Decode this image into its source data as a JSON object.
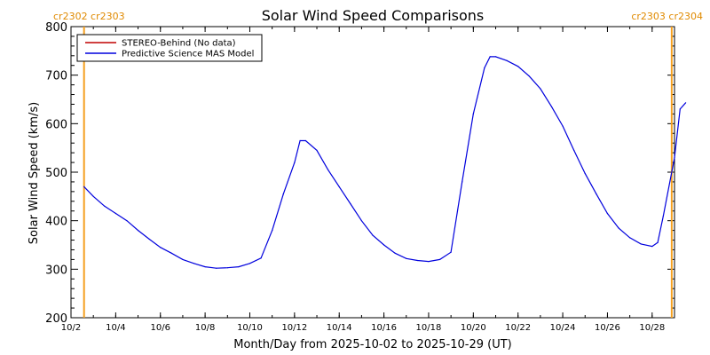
{
  "chart_data": {
    "type": "line",
    "title": "Solar Wind Speed Comparisons",
    "xlabel": "Month/Day from 2025-10-02 to 2025-10-29 (UT)",
    "ylabel": "Solar Wind Speed (km/s)",
    "xlim": [
      "2025-10-02",
      "2025-10-29"
    ],
    "ylim": [
      200,
      800
    ],
    "x_ticks": [
      {
        "date": "2025-10-02",
        "label": "10/2"
      },
      {
        "date": "2025-10-04",
        "label": "10/4"
      },
      {
        "date": "2025-10-06",
        "label": "10/6"
      },
      {
        "date": "2025-10-08",
        "label": "10/8"
      },
      {
        "date": "2025-10-10",
        "label": "10/10"
      },
      {
        "date": "2025-10-12",
        "label": "10/12"
      },
      {
        "date": "2025-10-14",
        "label": "10/14"
      },
      {
        "date": "2025-10-16",
        "label": "10/16"
      },
      {
        "date": "2025-10-18",
        "label": "10/18"
      },
      {
        "date": "2025-10-20",
        "label": "10/20"
      },
      {
        "date": "2025-10-22",
        "label": "10/22"
      },
      {
        "date": "2025-10-24",
        "label": "10/24"
      },
      {
        "date": "2025-10-26",
        "label": "10/26"
      },
      {
        "date": "2025-10-28",
        "label": "10/28"
      }
    ],
    "y_ticks": [
      200,
      300,
      400,
      500,
      600,
      700,
      800
    ],
    "legend_position": "top-left",
    "carrington_markers": [
      {
        "date": "2025-10-02 14:00",
        "label": "cr2302 cr2303",
        "color": "#f5a020"
      },
      {
        "date": "2025-10-28 21:00",
        "label": "cr2303 cr2304",
        "color": "#f5a020"
      }
    ],
    "series": [
      {
        "name": "STEREO-Behind (No data)",
        "color": "#c00000",
        "points": []
      },
      {
        "name": "Predictive Science MAS Model",
        "color": "#0000dd",
        "points": [
          [
            "2025-10-02 14:00",
            470
          ],
          [
            "2025-10-03 00:00",
            450
          ],
          [
            "2025-10-03 12:00",
            430
          ],
          [
            "2025-10-04 00:00",
            415
          ],
          [
            "2025-10-04 12:00",
            400
          ],
          [
            "2025-10-05 00:00",
            380
          ],
          [
            "2025-10-05 12:00",
            362
          ],
          [
            "2025-10-06 00:00",
            345
          ],
          [
            "2025-10-06 12:00",
            333
          ],
          [
            "2025-10-07 00:00",
            320
          ],
          [
            "2025-10-07 12:00",
            312
          ],
          [
            "2025-10-08 00:00",
            305
          ],
          [
            "2025-10-08 12:00",
            302
          ],
          [
            "2025-10-09 00:00",
            303
          ],
          [
            "2025-10-09 12:00",
            305
          ],
          [
            "2025-10-10 00:00",
            312
          ],
          [
            "2025-10-10 12:00",
            323
          ],
          [
            "2025-10-11 00:00",
            380
          ],
          [
            "2025-10-11 12:00",
            455
          ],
          [
            "2025-10-12 00:00",
            520
          ],
          [
            "2025-10-12 06:00",
            565
          ],
          [
            "2025-10-12 12:00",
            565
          ],
          [
            "2025-10-13 00:00",
            545
          ],
          [
            "2025-10-13 12:00",
            505
          ],
          [
            "2025-10-14 00:00",
            470
          ],
          [
            "2025-10-14 12:00",
            435
          ],
          [
            "2025-10-15 00:00",
            400
          ],
          [
            "2025-10-15 12:00",
            370
          ],
          [
            "2025-10-16 00:00",
            350
          ],
          [
            "2025-10-16 12:00",
            333
          ],
          [
            "2025-10-17 00:00",
            322
          ],
          [
            "2025-10-17 12:00",
            318
          ],
          [
            "2025-10-18 00:00",
            316
          ],
          [
            "2025-10-18 12:00",
            320
          ],
          [
            "2025-10-19 00:00",
            335
          ],
          [
            "2025-10-19 12:00",
            480
          ],
          [
            "2025-10-20 00:00",
            620
          ],
          [
            "2025-10-20 12:00",
            715
          ],
          [
            "2025-10-20 18:00",
            738
          ],
          [
            "2025-10-21 00:00",
            738
          ],
          [
            "2025-10-21 12:00",
            730
          ],
          [
            "2025-10-22 00:00",
            718
          ],
          [
            "2025-10-22 12:00",
            698
          ],
          [
            "2025-10-23 00:00",
            672
          ],
          [
            "2025-10-23 12:00",
            635
          ],
          [
            "2025-10-24 00:00",
            595
          ],
          [
            "2025-10-24 12:00",
            545
          ],
          [
            "2025-10-25 00:00",
            497
          ],
          [
            "2025-10-25 12:00",
            455
          ],
          [
            "2025-10-26 00:00",
            415
          ],
          [
            "2025-10-26 12:00",
            385
          ],
          [
            "2025-10-27 00:00",
            365
          ],
          [
            "2025-10-27 12:00",
            352
          ],
          [
            "2025-10-28 00:00",
            347
          ],
          [
            "2025-10-28 06:00",
            355
          ],
          [
            "2025-10-28 12:00",
            410
          ],
          [
            "2025-10-29 00:00",
            530
          ],
          [
            "2025-10-29 06:00",
            630
          ],
          [
            "2025-10-29 12:00",
            643
          ]
        ]
      }
    ]
  }
}
